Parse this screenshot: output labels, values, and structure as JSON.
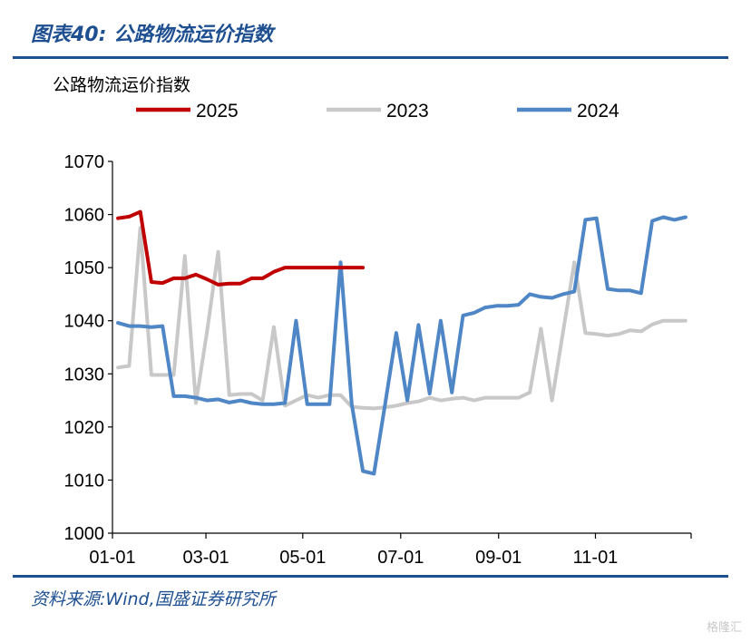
{
  "figure_title": "图表40:  公路物流运价指数",
  "source": "资料来源:Wind,国盛证券研究所",
  "watermark": "格隆汇",
  "colors": {
    "2025": "#c00000",
    "2023": "#c8c8c8",
    "2024": "#4f86c6",
    "accent": "#1d4f91"
  },
  "chart_data": {
    "type": "line",
    "title": "公路物流运价指数",
    "ylim": [
      1000,
      1070
    ],
    "yticks": [
      1000,
      1010,
      1020,
      1030,
      1040,
      1050,
      1060,
      1070
    ],
    "xlim": [
      0,
      52
    ],
    "xticks": [
      {
        "label": "01-01",
        "x": 0
      },
      {
        "label": "03-01",
        "x": 8.4
      },
      {
        "label": "05-01",
        "x": 17.1
      },
      {
        "label": "07-01",
        "x": 25.9
      },
      {
        "label": "09-01",
        "x": 34.7
      },
      {
        "label": "11-01",
        "x": 43.4
      }
    ],
    "legend_position": "top",
    "series": [
      {
        "name": "2025",
        "x": [
          0.5,
          1.5,
          2.5,
          3.5,
          4.5,
          5.5,
          6.5,
          7.5,
          8.5,
          9.5,
          10.5,
          11.5,
          12.5,
          13.5,
          14.5,
          15.5,
          16.5,
          17.5,
          18.5,
          19.5,
          20.5,
          21.5,
          22.5
        ],
        "values": [
          1059.3,
          1059.6,
          1060.5,
          1047.3,
          1047.1,
          1048.0,
          1048.0,
          1048.7,
          1047.8,
          1046.8,
          1047.0,
          1047.0,
          1048.0,
          1048.0,
          1049.2,
          1050.0,
          1050.0,
          1050.0,
          1050.0,
          1050.0,
          1050.0,
          1050.0,
          1050.0
        ]
      },
      {
        "name": "2023",
        "x": [
          0.5,
          1.5,
          2.5,
          3.5,
          4.5,
          5.5,
          6.5,
          7.5,
          8.5,
          9.5,
          10.5,
          11.5,
          12.5,
          13.5,
          14.5,
          15.5,
          16.5,
          17.5,
          18.5,
          19.5,
          20.5,
          21.5,
          22.5,
          23.5,
          24.5,
          25.5,
          26.5,
          27.5,
          28.5,
          29.5,
          30.5,
          31.5,
          32.5,
          33.5,
          34.5,
          35.5,
          36.5,
          37.5,
          38.5,
          39.5,
          40.5,
          41.5,
          42.5,
          43.5,
          44.5,
          45.5,
          46.5,
          47.5,
          48.5,
          49.5,
          50.5,
          51.5
        ],
        "values": [
          1031.2,
          1031.5,
          1057.5,
          1029.8,
          1029.8,
          1029.8,
          1052.2,
          1024.5,
          1038.0,
          1053.0,
          1026.0,
          1026.2,
          1026.2,
          1025.0,
          1038.8,
          1024.0,
          1025.0,
          1026.0,
          1025.5,
          1026.0,
          1026.0,
          1023.8,
          1023.6,
          1023.5,
          1023.7,
          1024.0,
          1024.5,
          1024.8,
          1025.5,
          1025.0,
          1025.3,
          1025.5,
          1025.0,
          1025.5,
          1025.5,
          1025.5,
          1025.5,
          1026.5,
          1038.5,
          1025.0,
          1038.0,
          1051.0,
          1037.7,
          1037.5,
          1037.2,
          1037.5,
          1038.2,
          1038.0,
          1039.3,
          1040.0,
          1040.0,
          1040.0
        ]
      },
      {
        "name": "2024",
        "x": [
          0.5,
          1.5,
          2.5,
          3.5,
          4.5,
          5.5,
          6.5,
          7.5,
          8.5,
          9.5,
          10.5,
          11.5,
          12.5,
          13.5,
          14.5,
          15.5,
          16.5,
          17.5,
          18.5,
          19.5,
          20.5,
          21.5,
          22.5,
          23.5,
          24.5,
          25.5,
          26.5,
          27.5,
          28.5,
          29.5,
          30.5,
          31.5,
          32.5,
          33.5,
          34.5,
          35.5,
          36.5,
          37.5,
          38.5,
          39.5,
          40.5,
          41.5,
          42.5,
          43.5,
          44.5,
          45.5,
          46.5,
          47.5,
          48.5,
          49.5,
          50.5,
          51.5
        ],
        "values": [
          1039.6,
          1039.0,
          1039.0,
          1038.8,
          1039.0,
          1025.8,
          1025.8,
          1025.5,
          1025.0,
          1025.2,
          1024.6,
          1025.0,
          1024.5,
          1024.3,
          1024.3,
          1024.5,
          1040.0,
          1024.3,
          1024.3,
          1024.3,
          1051.0,
          1024.3,
          1011.7,
          1011.2,
          1024.3,
          1037.7,
          1025.0,
          1039.2,
          1026.3,
          1040.0,
          1026.5,
          1041.0,
          1041.5,
          1042.5,
          1042.8,
          1042.8,
          1043.0,
          1045.0,
          1044.5,
          1044.3,
          1045.0,
          1045.5,
          1059.0,
          1059.3,
          1046.0,
          1045.7,
          1045.7,
          1045.2,
          1058.8,
          1059.5,
          1059.0,
          1059.5
        ]
      }
    ]
  }
}
